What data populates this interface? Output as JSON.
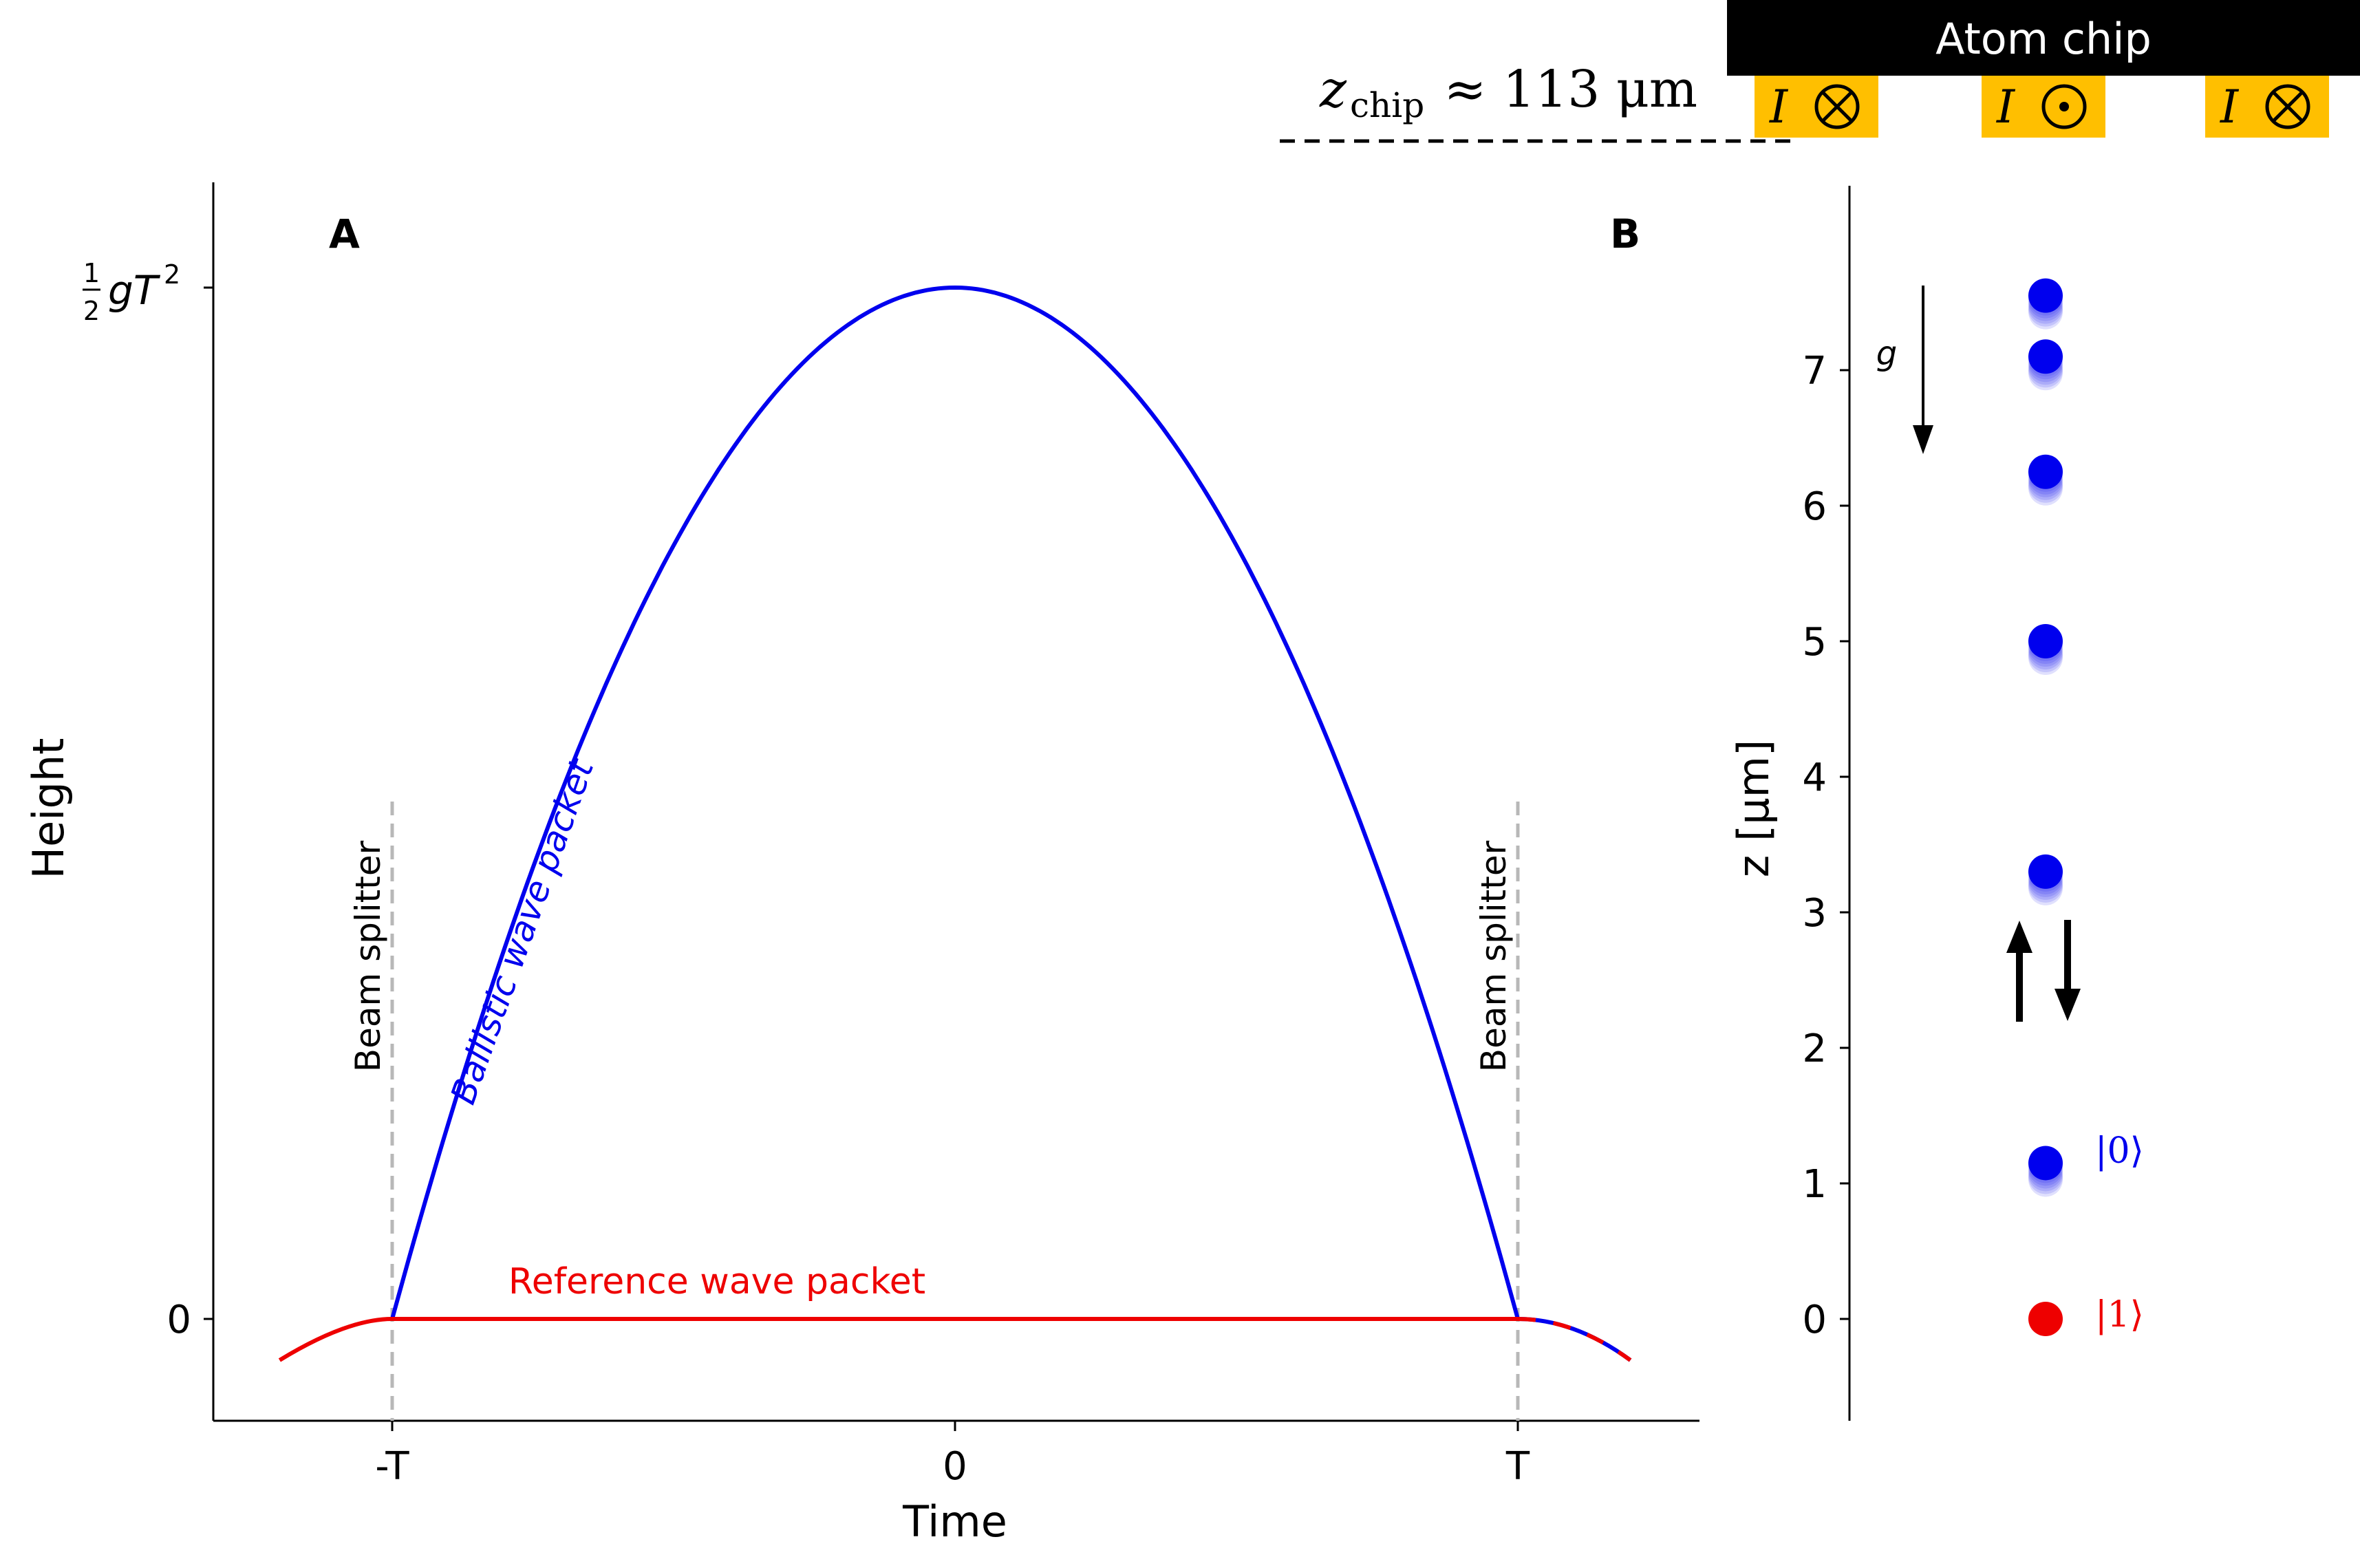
{
  "chart_data": [
    {
      "panel": "A",
      "type": "line",
      "xlabel": "Time",
      "ylabel": "Height",
      "xticks": [
        "-T",
        "0",
        "T"
      ],
      "x_tick_values": [
        -1,
        0,
        1
      ],
      "yticks": [
        "0",
        "½gT²"
      ],
      "y_tick_values": [
        0,
        1
      ],
      "xlim": [
        -1.33,
        1.33
      ],
      "ylim": [
        -0.1,
        1.1
      ],
      "annotations": {
        "beam_splitter_left": "Beam splitter",
        "beam_splitter_right": "Beam splitter",
        "ballistic": "Ballistic wave packet",
        "reference": "Reference wave packet"
      },
      "series": [
        {
          "name": "Ballistic wave packet",
          "color": "#0000ee",
          "x": [
            -1,
            -0.75,
            -0.5,
            -0.25,
            0,
            0.25,
            0.5,
            0.75,
            1,
            1.1,
            1.2
          ],
          "y": [
            0,
            0.4375,
            0.75,
            0.9375,
            1,
            0.9375,
            0.75,
            0.4375,
            0,
            -0.005,
            -0.04
          ]
        },
        {
          "name": "Reference wave packet",
          "color": "#ee0000",
          "x": [
            -1.2,
            -1.1,
            -1,
            0,
            1,
            1.1,
            1.2
          ],
          "y": [
            -0.04,
            -0.01,
            0,
            0,
            0,
            -0.005,
            -0.04
          ]
        }
      ]
    },
    {
      "panel": "B",
      "type": "scatter",
      "ylabel": "z [μm]",
      "yticks": [
        0,
        1,
        2,
        3,
        4,
        5,
        6,
        7
      ],
      "ylim": [
        -0.75,
        8.35
      ],
      "gravity_label": "g",
      "series": [
        {
          "name": "|0⟩",
          "color": "#0000ee",
          "y": [
            7.55,
            7.1,
            6.25,
            5.0,
            3.3,
            1.15
          ]
        },
        {
          "name": "|1⟩",
          "color": "#ee0000",
          "y": [
            0
          ]
        }
      ]
    }
  ],
  "chip": {
    "title": "Atom chip",
    "distance_label": "z",
    "distance_subscript": "chip",
    "distance_value": " ≈ 113 μm",
    "wires": [
      {
        "current": "I",
        "symbol": "into-page"
      },
      {
        "current": "I",
        "symbol": "out-of-page"
      },
      {
        "current": "I",
        "symbol": "into-page"
      }
    ],
    "wire_color": "#ffbf00"
  }
}
